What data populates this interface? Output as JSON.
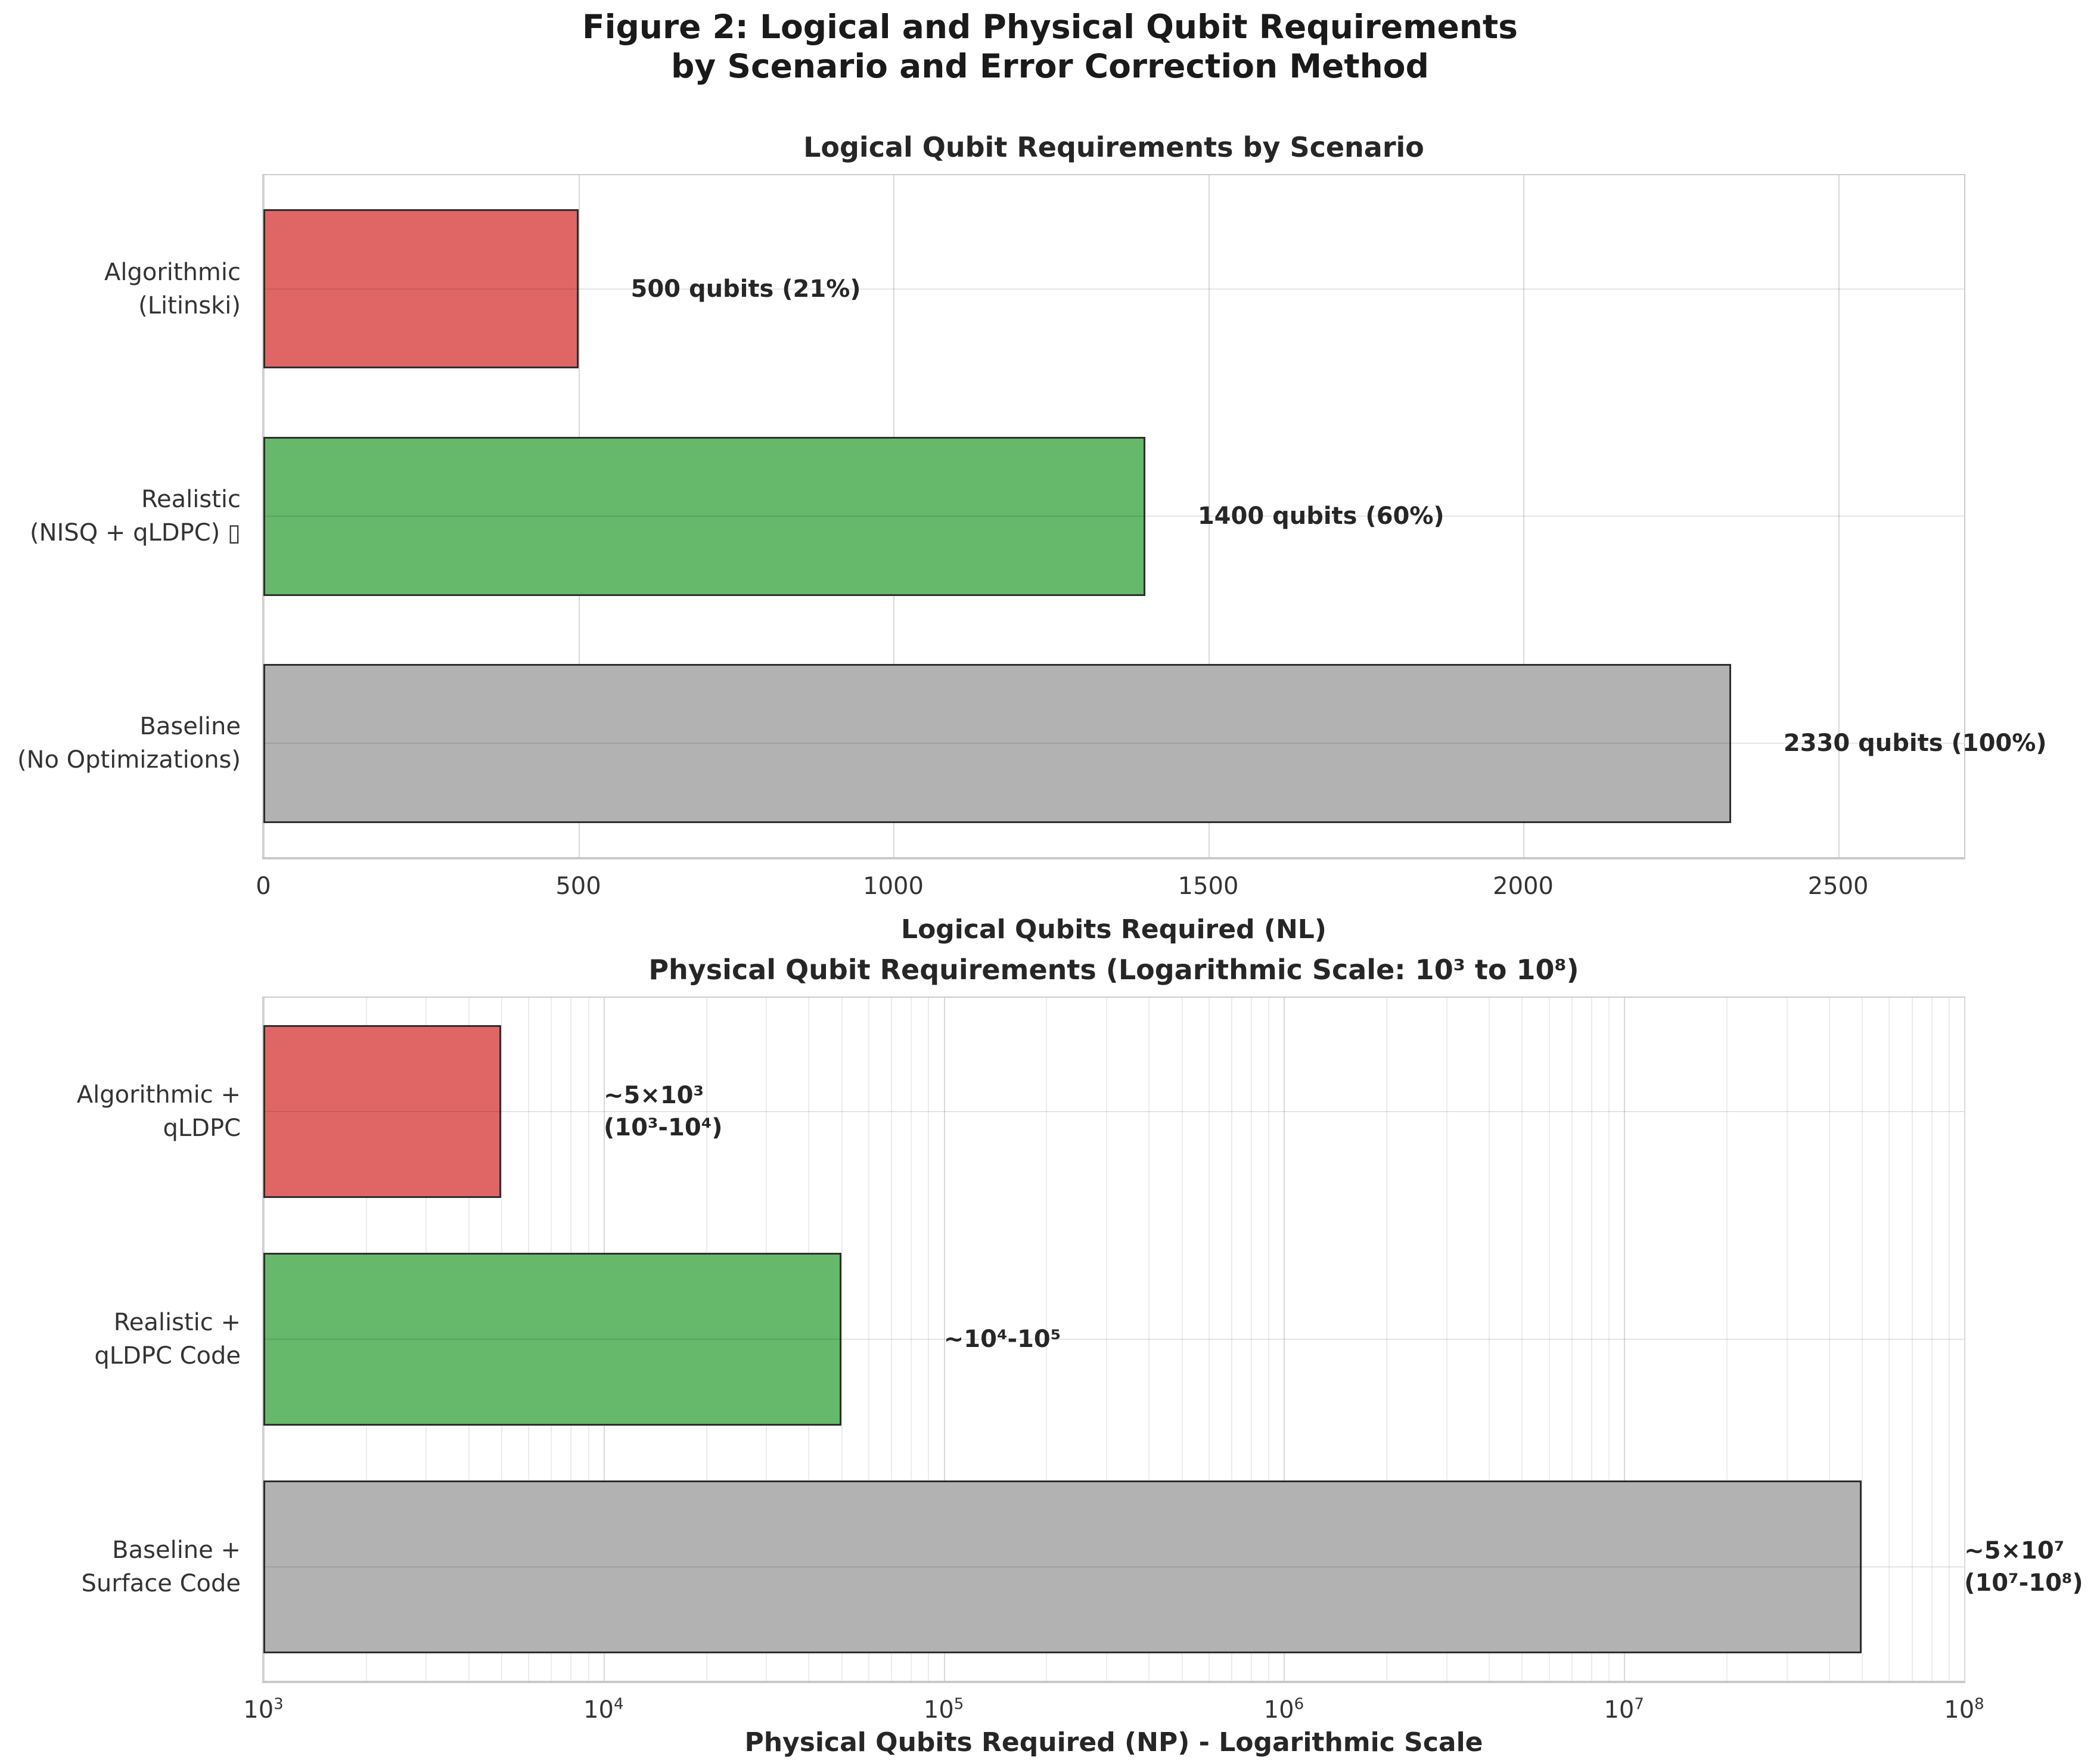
{
  "figure": {
    "title_lines": [
      "Figure 2: Logical and Physical Qubit Requirements",
      "by Scenario and Error Correction Method"
    ]
  },
  "chart_data": [
    {
      "type": "bar",
      "orientation": "horizontal",
      "title": "Logical Qubit Requirements by Scenario",
      "xlabel": "Logical Qubits Required (NL)",
      "xscale": "linear",
      "xlim": [
        0,
        2700
      ],
      "xticks": [
        0,
        500,
        1000,
        1500,
        2000,
        2500
      ],
      "grid": true,
      "legend": "none",
      "categories": [
        "Algorithmic\n(Litinski)",
        "Realistic\n(NISQ + qLDPC) ▯",
        "Baseline\n(No Optimizations)"
      ],
      "values": [
        500,
        1400,
        2330
      ],
      "percent_of_baseline": [
        21,
        60,
        100
      ],
      "bar_labels": [
        "500 qubits (21%)",
        "1400 qubits (60%)",
        "2330 qubits (100%)"
      ],
      "bar_colors": [
        "#e06666",
        "#66b86a",
        "#b2b2b2"
      ],
      "edge_color": "#2e2e2e"
    },
    {
      "type": "bar",
      "orientation": "horizontal",
      "title": "Physical Qubit Requirements (Logarithmic Scale: 10³ to 10⁸)",
      "xlabel": "Physical Qubits Required (NP) - Logarithmic Scale",
      "xscale": "log",
      "xlim": [
        1000,
        100000000
      ],
      "xtick_exponents": [
        3,
        4,
        5,
        6,
        7,
        8
      ],
      "grid": true,
      "legend": "none",
      "categories": [
        "Algorithmic +\nqLDPC",
        "Realistic +\nqLDPC Code",
        "Baseline +\nSurface Code"
      ],
      "values": [
        5000,
        50000,
        50000000
      ],
      "value_ranges": [
        "10³-10⁴",
        "10⁴-10⁵",
        "10⁷-10⁸"
      ],
      "bar_labels": [
        "~5×10³\n(10³-10⁴)",
        "~10⁴-10⁵",
        "~5×10⁷\n(10⁷-10⁸)"
      ],
      "bar_colors": [
        "#e06666",
        "#66b86a",
        "#b2b2b2"
      ],
      "edge_color": "#2e2e2e"
    }
  ]
}
